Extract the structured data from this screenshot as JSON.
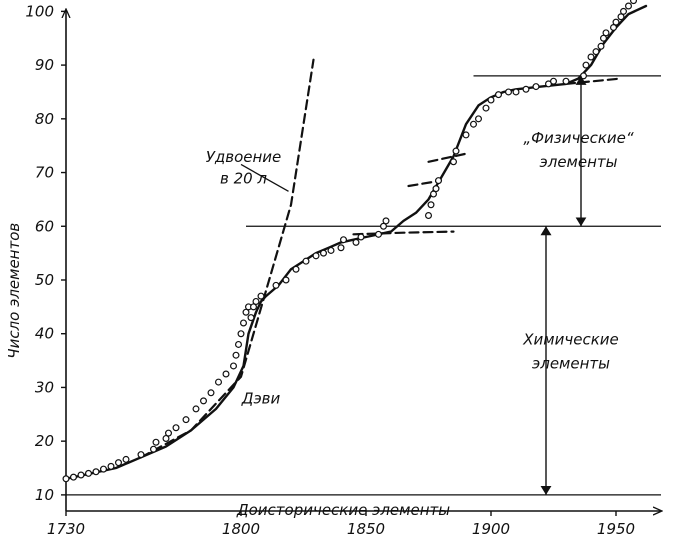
{
  "chart_data": {
    "type": "line",
    "title": "",
    "xlabel": "",
    "ylabel": "Число элементов",
    "xlim": [
      1730,
      1968
    ],
    "ylim": [
      7,
      101
    ],
    "xticks": [
      1730,
      1800,
      1850,
      1900,
      1950
    ],
    "yticks": [
      10,
      20,
      30,
      40,
      50,
      60,
      70,
      80,
      90,
      100
    ],
    "grid": false,
    "series": [
      {
        "style": "solid",
        "x": [
          1730,
          1740,
          1750,
          1760,
          1770,
          1780,
          1790,
          1797,
          1801,
          1803,
          1806,
          1808,
          1810,
          1815,
          1820,
          1825,
          1830,
          1835,
          1840,
          1845,
          1850,
          1855,
          1860,
          1865,
          1870,
          1875,
          1880,
          1885,
          1890,
          1895,
          1900,
          1905,
          1910,
          1920,
          1930,
          1935,
          1940,
          1945,
          1950,
          1955,
          1962
        ],
        "y": [
          13,
          14,
          15,
          17,
          19,
          22,
          26,
          30,
          34,
          40,
          44,
          46,
          47,
          49,
          52,
          53.5,
          55,
          56,
          57,
          57.5,
          58,
          58.5,
          59,
          61,
          62.5,
          65,
          69,
          73,
          79,
          82.5,
          84,
          85,
          85.5,
          86,
          86.5,
          87.5,
          90,
          94,
          97,
          99.5,
          101
        ]
      },
      {
        "style": "points",
        "x": [
          1730,
          1733,
          1736,
          1739,
          1742,
          1745,
          1748,
          1751,
          1754,
          1760,
          1765,
          1766,
          1770,
          1771,
          1774,
          1778,
          1782,
          1785,
          1788,
          1791,
          1794,
          1797,
          1798,
          1799,
          1800,
          1801,
          1802,
          1803,
          1804,
          1805,
          1806,
          1808,
          1814,
          1818,
          1822,
          1826,
          1830,
          1833,
          1836,
          1840,
          1841,
          1846,
          1848,
          1855,
          1857,
          1858,
          1875,
          1876,
          1877,
          1878,
          1879,
          1885,
          1886,
          1890,
          1893,
          1895,
          1898,
          1900,
          1903,
          1907,
          1910,
          1914,
          1918,
          1923,
          1925,
          1930,
          1937,
          1938,
          1940,
          1942,
          1944,
          1945,
          1946,
          1949,
          1950,
          1952,
          1953,
          1955,
          1957
        ],
        "y": [
          13,
          13.3,
          13.7,
          14,
          14.3,
          14.8,
          15.3,
          16,
          16.6,
          17.5,
          18.5,
          19.8,
          20.5,
          21.5,
          22.5,
          24,
          26,
          27.5,
          29,
          31,
          32.5,
          34,
          36,
          38,
          40,
          42,
          44,
          45,
          43,
          45,
          46,
          47,
          49,
          50,
          52,
          53.5,
          54.5,
          55,
          55.5,
          56,
          57.5,
          57,
          58,
          58.5,
          60,
          61,
          62,
          64,
          66,
          67,
          68.5,
          72,
          74,
          77,
          79,
          80,
          82,
          83.5,
          84.5,
          85,
          85,
          85.5,
          86,
          86.5,
          87,
          87,
          88,
          90,
          91.5,
          92.5,
          93.5,
          95,
          96,
          97,
          98,
          99,
          100,
          101,
          102
        ]
      },
      {
        "style": "dashed",
        "name": "Удвоение в 20 л",
        "x": [
          1760,
          1780,
          1800,
          1820,
          1829
        ],
        "y": [
          17,
          22,
          32,
          64,
          91
        ]
      },
      {
        "style": "dashed",
        "x": [
          1845,
          1865,
          1885
        ],
        "y": [
          58.5,
          58.8,
          59
        ]
      },
      {
        "style": "dashed",
        "x": [
          1867,
          1880
        ],
        "y": [
          67.5,
          68.5
        ]
      },
      {
        "style": "dashed",
        "x": [
          1875,
          1890
        ],
        "y": [
          72,
          73.5
        ]
      },
      {
        "style": "dashed",
        "x": [
          1930,
          1952
        ],
        "y": [
          86.5,
          87.5
        ]
      }
    ],
    "reference_lines": [
      {
        "y": 10,
        "x_from": 1730,
        "x_to": 1968
      },
      {
        "y": 60,
        "x_from": 1802,
        "x_to": 1968
      },
      {
        "y": 88,
        "x_from": 1893,
        "x_to": 1968
      }
    ],
    "annotations": [
      {
        "text": "Удвоение",
        "x": 1801,
        "y": 72
      },
      {
        "text": "в 20 л",
        "x": 1801,
        "y": 68
      },
      {
        "text": "Дэви",
        "x": 1808,
        "y": 27
      },
      {
        "text": "„Физические“",
        "x": 1935,
        "y": 75.5
      },
      {
        "text": "элементы",
        "x": 1935,
        "y": 71
      },
      {
        "text": "Химические",
        "x": 1932,
        "y": 38
      },
      {
        "text": "элементы",
        "x": 1932,
        "y": 33.5
      },
      {
        "text": "Доисторические элементы",
        "x": 1841,
        "y": 6.3
      }
    ],
    "brackets": [
      {
        "x": 1936,
        "y_from": 60,
        "y_to": 88
      },
      {
        "x": 1922,
        "y_from": 10,
        "y_to": 60
      }
    ]
  }
}
